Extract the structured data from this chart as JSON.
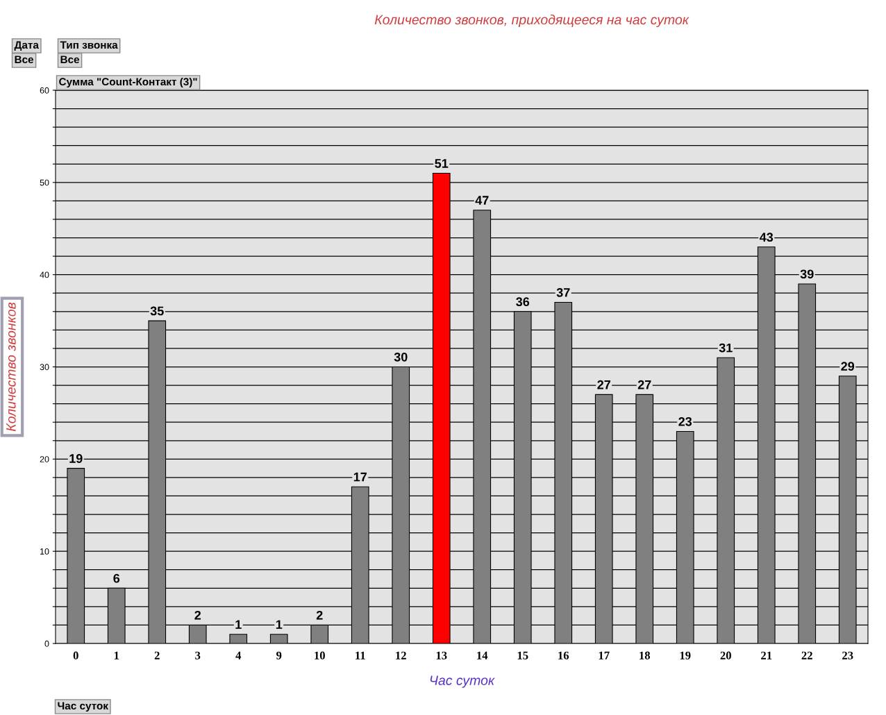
{
  "chart_data": {
    "type": "bar",
    "title": "Количество звонков, приходящееся на час суток",
    "xlabel": "Час суток",
    "ylabel": "Количество звонков",
    "categories": [
      "0",
      "1",
      "2",
      "3",
      "4",
      "9",
      "10",
      "11",
      "12",
      "13",
      "14",
      "15",
      "16",
      "17",
      "18",
      "19",
      "20",
      "21",
      "22",
      "23"
    ],
    "values": [
      19,
      6,
      35,
      2,
      1,
      1,
      2,
      17,
      30,
      51,
      47,
      36,
      37,
      27,
      27,
      23,
      31,
      43,
      39,
      29
    ],
    "colors": [
      "#808080",
      "#808080",
      "#808080",
      "#808080",
      "#808080",
      "#808080",
      "#808080",
      "#808080",
      "#808080",
      "#ff0000",
      "#808080",
      "#808080",
      "#808080",
      "#808080",
      "#808080",
      "#808080",
      "#808080",
      "#808080",
      "#808080",
      "#808080"
    ],
    "ylim": [
      0,
      60
    ],
    "yticks": [
      0,
      {
        "value": 2,
        "label": null
      },
      {
        "value": 4,
        "label": null
      },
      {
        "value": 6,
        "label": null
      },
      {
        "value": 8,
        "label": null
      },
      10,
      {
        "value": 12,
        "label": null
      },
      {
        "value": 14,
        "label": null
      },
      {
        "value": 16,
        "label": null
      },
      {
        "value": 18,
        "label": null
      },
      20,
      {
        "value": 22,
        "label": null
      },
      {
        "value": 24,
        "label": null
      },
      {
        "value": 26,
        "label": null
      },
      {
        "value": 28,
        "label": null
      },
      30,
      {
        "value": 32,
        "label": null
      },
      {
        "value": 34,
        "label": null
      },
      {
        "value": 36,
        "label": null
      },
      {
        "value": 38,
        "label": null
      },
      40,
      {
        "value": 42,
        "label": null
      },
      {
        "value": 44,
        "label": null
      },
      {
        "value": 46,
        "label": null
      },
      {
        "value": 48,
        "label": null
      },
      50,
      {
        "value": 52,
        "label": null
      },
      {
        "value": 54,
        "label": null
      },
      {
        "value": 56,
        "label": null
      },
      {
        "value": 58,
        "label": null
      },
      60
    ],
    "grid": "y",
    "data_labels": true,
    "annotations": [
      "Дата",
      "Тип звонка",
      "Все",
      "Все",
      "Сумма \"Count-Контакт (3)\"",
      "Час суток"
    ]
  }
}
